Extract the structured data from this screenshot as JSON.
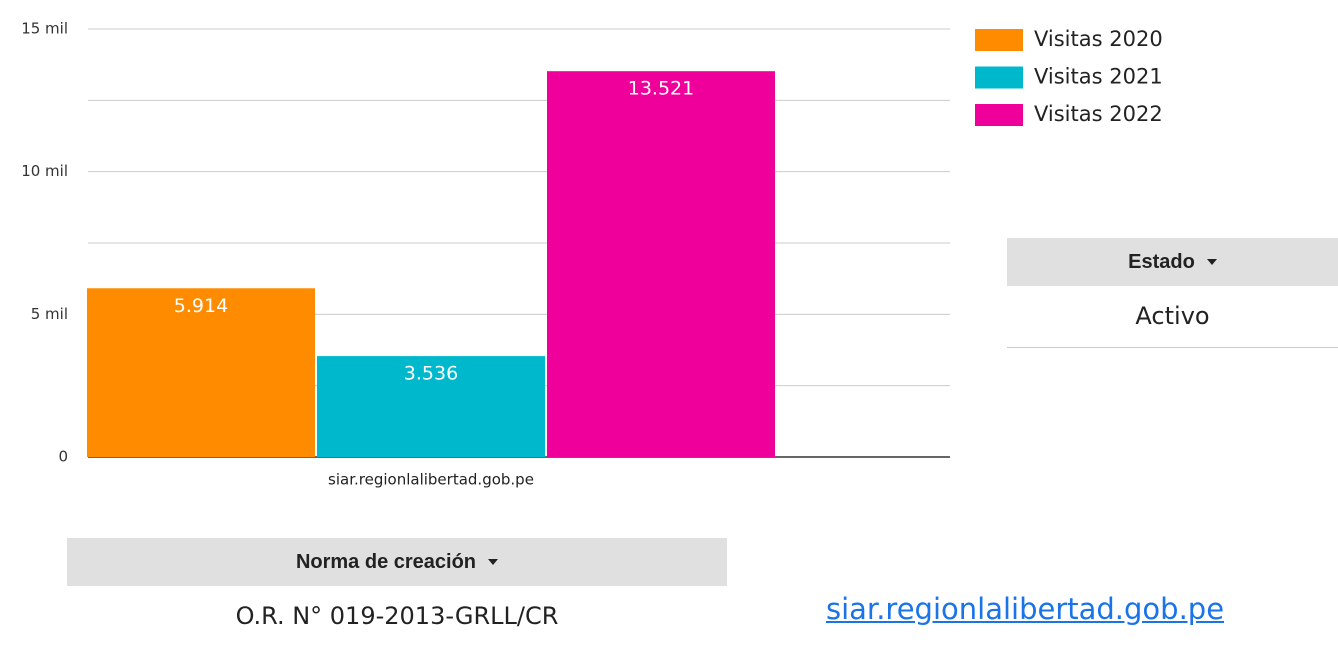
{
  "chart_data": {
    "type": "bar",
    "categories": [
      "siar.regionlalibertad.gob.pe"
    ],
    "series": [
      {
        "name": "Visitas 2020",
        "color": "#ff8c00",
        "values": [
          5914
        ],
        "value_labels": [
          "5.914"
        ]
      },
      {
        "name": "Visitas 2021",
        "color": "#00b8cc",
        "values": [
          3536
        ],
        "value_labels": [
          "3.536"
        ]
      },
      {
        "name": "Visitas 2022",
        "color": "#f0009a",
        "values": [
          13521
        ],
        "value_labels": [
          "13.521"
        ]
      }
    ],
    "ylim": [
      0,
      15000
    ],
    "yticks": [
      {
        "value": 0,
        "label": "0"
      },
      {
        "value": 5000,
        "label": "5 mil"
      },
      {
        "value": 10000,
        "label": "10 mil"
      },
      {
        "value": 15000,
        "label": "15 mil"
      }
    ],
    "minor_yticks": [
      2500,
      7500,
      12500
    ],
    "grid": true,
    "legend": "right"
  },
  "estado": {
    "header": "Estado",
    "value": "Activo"
  },
  "norma": {
    "header": "Norma de creación",
    "value": "O.R. N° 019-2013-GRLL/CR"
  },
  "link": "siar.regionlalibertad.gob.pe"
}
